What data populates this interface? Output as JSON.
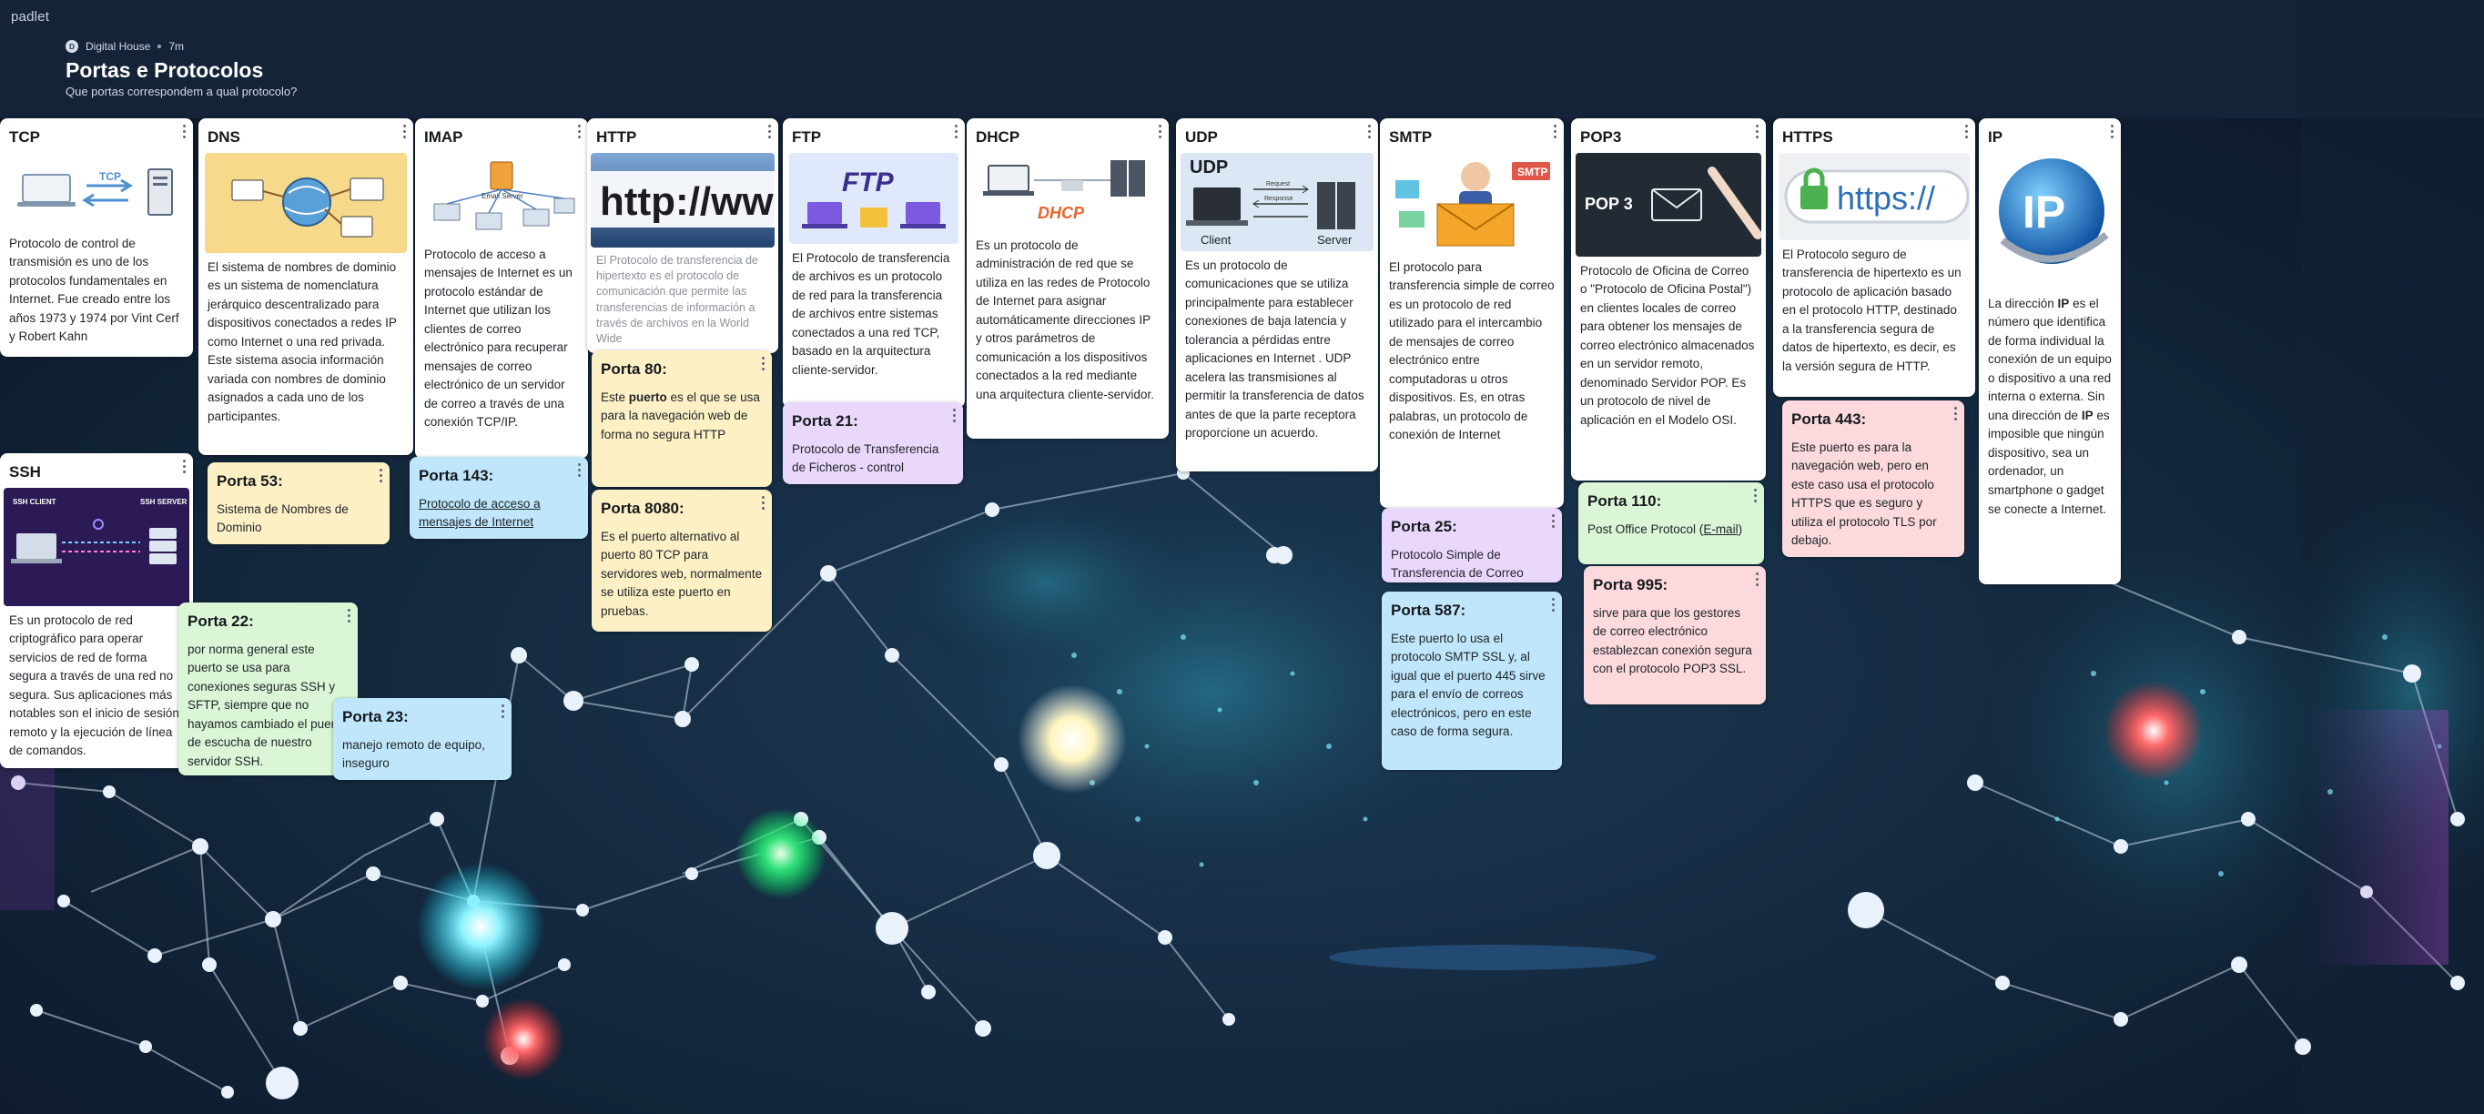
{
  "app": {
    "brand": "padlet"
  },
  "header": {
    "author": "Digital House",
    "avatar_letter": "D",
    "time": "7m",
    "title": "Portas e Protocolos",
    "subtitle": "Que portas correspondem a qual protocolo?"
  },
  "columns": {
    "tcp": {
      "title": "TCP",
      "text": "Protocolo de control de transmisión es uno de los protocolos fundamentales en Internet. Fue creado entre los años 1973 y 1974 por Vint Cerf y Robert Kahn",
      "img_label": "TCP"
    },
    "ssh": {
      "title": "SSH",
      "text": "Es un protocolo de red criptográfico para operar servicios de red de forma segura a través de una red no segura. Sus aplicaciones más notables son el inicio de sesión remoto y la ejecución de línea de comandos.",
      "img_client": "SSH CLIENT",
      "img_server": "SSH SERVER"
    },
    "porta22": {
      "title": "Porta 22:",
      "text": "por norma general este puerto se usa para conexiones seguras SSH y SFTP, siempre que no hayamos cambiado el puerto de escucha de nuestro servidor SSH."
    },
    "porta23": {
      "title": "Porta 23:",
      "text": "manejo remoto de equipo, inseguro"
    },
    "dns": {
      "title": "DNS",
      "text": "El sistema de nombres de dominio  es un sistema de nomenclatura jerárquico descentralizado para dispositivos conectados a redes IP como Internet o una red privada. Este sistema asocia información variada con nombres de dominio asignados a cada uno de los participantes."
    },
    "porta53": {
      "title": "Porta 53:",
      "text": "Sistema de Nombres de Dominio"
    },
    "imap": {
      "title": "IMAP",
      "text": "Protocolo de acceso a mensajes de Internet es un protocolo estándar de Internet que utilizan los clientes de correo electrónico para recuperar mensajes de correo electrónico de un servidor de correo a través de una conexión TCP/IP.",
      "img_label": "Email Server"
    },
    "porta143": {
      "title": "Porta 143:",
      "text": "Protocolo de acceso a mensajes de Internet"
    },
    "http": {
      "title": "HTTP",
      "text": "El Protocolo de transferencia de hipertexto es el protocolo de comunicación que permite las transferencias de información a través de archivos en la World Wide",
      "img_label": "http://ww"
    },
    "porta80": {
      "title": "Porta 80:",
      "text_pre": "Este ",
      "text_bold": "puerto",
      "text_post": " es el que se usa para la navegación web de forma no segura HTTP"
    },
    "porta8080": {
      "title": "Porta 8080:",
      "text": "Es el puerto alternativo al puerto 80 TCP para servidores web, normalmente se utiliza este puerto en pruebas."
    },
    "ftp": {
      "title": "FTP",
      "text": "El Protocolo de transferencia de archivos es un protocolo de red para la transferencia de archivos entre sistemas conectados a una red TCP, basado en la arquitectura cliente-servidor.",
      "img_label": "FTP"
    },
    "porta21": {
      "title": "Porta 21:",
      "text": "Protocolo de Transferencia de Ficheros - control"
    },
    "dhcp": {
      "title": "DHCP",
      "text": "Es un protocolo de administración de red que se utiliza en las redes de Protocolo de Internet para asignar automáticamente direcciones IP y otros parámetros de comunicación a los dispositivos conectados a la red mediante una arquitectura cliente-servidor.",
      "img_label": "DHCP"
    },
    "udp": {
      "title": "UDP",
      "text": "Es un protocolo de comunicaciones que se utiliza principalmente para establecer conexiones de baja latencia y tolerancia a pérdidas entre aplicaciones en Internet . UDP acelera las transmisiones al permitir la transferencia de datos antes de que la parte receptora proporcione un acuerdo.",
      "img_title": "UDP",
      "img_client": "Client",
      "img_server": "Server",
      "img_request": "Request",
      "img_response": "Response"
    },
    "smtp": {
      "title": "SMTP",
      "text": "El protocolo para transferencia simple de correo es un protocolo de red utilizado para el intercambio de mensajes de correo electrónico entre computadoras u otros dispositivos. Es, en otras palabras, un protocolo de conexión de Internet",
      "img_label": "SMTP"
    },
    "porta25": {
      "title": "Porta 25:",
      "text": "Protocolo Simple de Transferencia de Correo"
    },
    "porta587": {
      "title": "Porta 587:",
      "text": "Este puerto lo usa el protocolo SMTP SSL y, al igual que el puerto 445 sirve para el envío de correos electrónicos, pero en este caso de forma segura."
    },
    "pop3": {
      "title": "POP3",
      "text": "Protocolo de Oficina de Correo o \"Protocolo de Oficina Postal\") en clientes locales de correo para obtener los mensajes de correo electrónico almacenados en un servidor remoto, denominado Servidor POP. Es un protocolo de nivel de aplicación en el Modelo OSI.",
      "img_label": "POP 3"
    },
    "porta110": {
      "title": "Porta 110:",
      "text_pre": "Post Office Protocol (",
      "text_link": "E-mail",
      "text_post": ")"
    },
    "porta995": {
      "title": "Porta 995:",
      "text": "sirve para que los gestores de correo electrónico establezcan conexión segura con el protocolo POP3 SSL."
    },
    "https": {
      "title": "HTTPS",
      "text": "El Protocolo seguro de transferencia de hipertexto es un protocolo de aplicación basado en el protocolo HTTP, destinado a la transferencia segura de datos de hipertexto, es decir, es la versión segura de HTTP.",
      "img_label": "https://"
    },
    "porta443": {
      "title": "Porta 443:",
      "text": "Este puerto es para la navegación web, pero en este caso usa el protocolo HTTPS que es seguro y utiliza el protocolo TLS por debajo."
    },
    "ip": {
      "title": "IP",
      "text_1": "La dirección ",
      "bold_1": "IP",
      "text_2": " es el número que identifica de forma individual la conexión de un equipo o dispositivo a una red interna o externa. Sin una dirección de ",
      "bold_2": "IP",
      "text_3": " es imposible que ningún dispositivo, sea un ordenador, un smartphone o gadget se conecte a Internet.",
      "img_label": "IP"
    }
  },
  "colors": {
    "yellow": "#fdf0c4",
    "blue": "#bfe6fb",
    "purple": "#ead8fc",
    "green": "#daf6d6",
    "pink": "#fbd9dc",
    "background": "#0f1e33"
  }
}
